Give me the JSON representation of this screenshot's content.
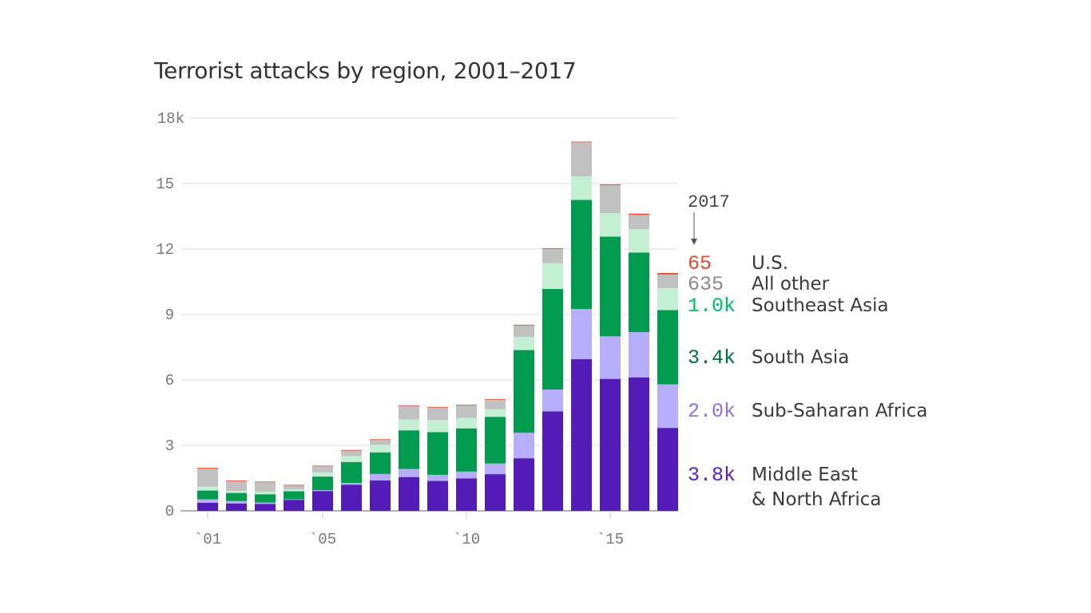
{
  "chart_data": {
    "type": "bar",
    "stacked": true,
    "title": "Terrorist attacks by region, 2001–2017",
    "xlabel": "",
    "ylabel": "",
    "ylim": [
      0,
      18
    ],
    "y_unit": "thousands",
    "y_ticks": [
      "0",
      "3",
      "6",
      "9",
      "12",
      "15",
      "18k"
    ],
    "y_tick_values": [
      0,
      3,
      6,
      9,
      12,
      15,
      18
    ],
    "x_ticks": [
      {
        "year": 2001,
        "label": "`01"
      },
      {
        "year": 2005,
        "label": "`05"
      },
      {
        "year": 2010,
        "label": "`10"
      },
      {
        "year": 2015,
        "label": "`15"
      }
    ],
    "grid": true,
    "legend": "right, direct labels for 2017",
    "annotation": "2017",
    "categories": [
      2001,
      2002,
      2003,
      2004,
      2005,
      2006,
      2007,
      2008,
      2009,
      2010,
      2011,
      2012,
      2013,
      2014,
      2015,
      2016,
      2017
    ],
    "series": [
      {
        "name": "Middle East & North Africa",
        "label_value": "3.8k",
        "color": "#531bb8",
        "label_color": "#5a22c0",
        "values": [
          0.37,
          0.34,
          0.32,
          0.51,
          0.91,
          1.2,
          1.39,
          1.55,
          1.37,
          1.49,
          1.68,
          2.41,
          4.56,
          6.95,
          6.05,
          6.12,
          3.8
        ]
      },
      {
        "name": "Sub-Saharan Africa",
        "label_value": "2.0k",
        "color": "#b6aefc",
        "label_color": "#8a72f0",
        "values": [
          0.16,
          0.11,
          0.06,
          0.02,
          0.04,
          0.08,
          0.3,
          0.37,
          0.28,
          0.31,
          0.49,
          1.17,
          1.0,
          2.3,
          1.95,
          2.07,
          2.0
        ]
      },
      {
        "name": "South Asia",
        "label_value": "3.4k",
        "color": "#019b4f",
        "label_color": "#00703a",
        "values": [
          0.4,
          0.37,
          0.38,
          0.37,
          0.62,
          0.96,
          0.99,
          1.77,
          1.96,
          1.98,
          2.14,
          3.79,
          4.61,
          5.0,
          4.57,
          3.65,
          3.4
        ]
      },
      {
        "name": "Southeast Asia",
        "label_value": "1.0k",
        "color": "#c3f0d3",
        "label_color": "#00c060",
        "values": [
          0.18,
          0.09,
          0.12,
          0.08,
          0.19,
          0.27,
          0.35,
          0.5,
          0.55,
          0.48,
          0.35,
          0.6,
          1.18,
          1.08,
          1.07,
          1.07,
          1.0
        ]
      },
      {
        "name": "All other",
        "label_value": "635",
        "color": "#c1c1c1",
        "label_color": "#8a8a8a",
        "values": [
          0.82,
          0.45,
          0.43,
          0.2,
          0.28,
          0.26,
          0.23,
          0.62,
          0.57,
          0.57,
          0.44,
          0.54,
          0.66,
          1.56,
          1.28,
          0.66,
          0.635
        ]
      },
      {
        "name": "U.S.",
        "label_value": "65",
        "color": "#e8472a",
        "label_color": "#e8472a",
        "values": [
          0.04,
          0.03,
          0.03,
          0.01,
          0.03,
          0.02,
          0.02,
          0.03,
          0.03,
          0.03,
          0.02,
          0.02,
          0.03,
          0.03,
          0.04,
          0.05,
          0.065
        ]
      }
    ]
  }
}
